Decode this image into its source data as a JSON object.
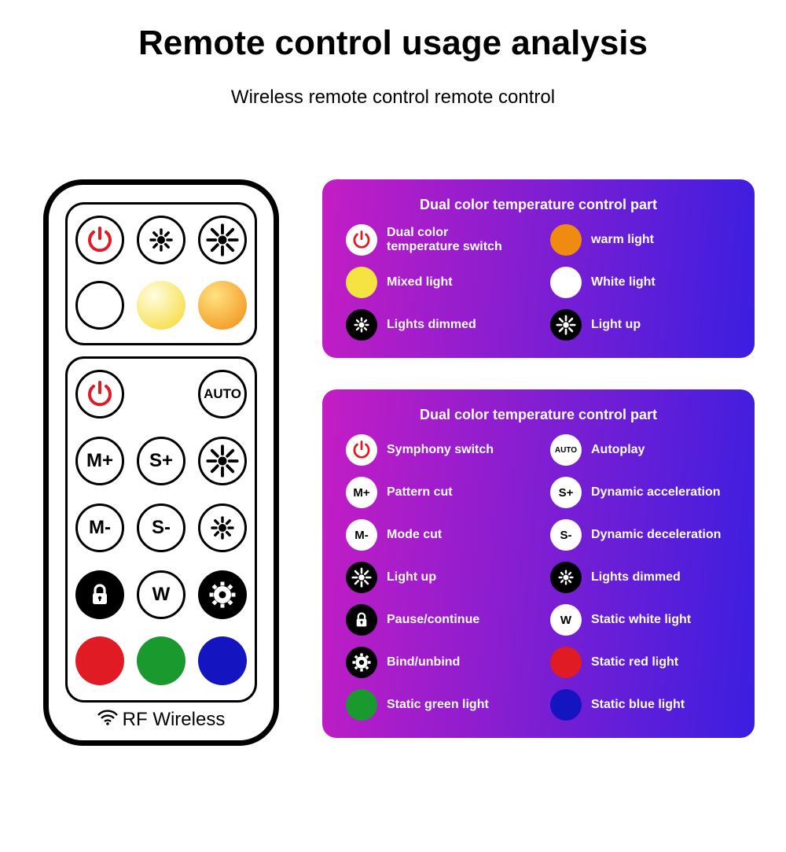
{
  "title": "Remote control usage analysis",
  "subtitle": "Wireless remote control remote control",
  "rf_label": "RF Wireless",
  "colors": {
    "bg": "#ffffff",
    "text": "#000000",
    "border": "#000000",
    "red": "#e01b24",
    "orange": "#f08b12",
    "yellow": "#f5e342",
    "yellow_grad_top": "#fffde0",
    "yellow_grad_bot": "#f5d72a",
    "orange_grad_top": "#ffe280",
    "orange_grad_bot": "#f08b12",
    "green": "#1a9a2e",
    "blue": "#1414c0",
    "dark_red": "#d01010",
    "panel_grad_left": "#c41dc4",
    "panel_grad_right": "#3b1ee0",
    "white": "#ffffff",
    "black": "#000000"
  },
  "remote": {
    "top": [
      {
        "type": "power",
        "color": "#e01b24"
      },
      {
        "type": "bright_small"
      },
      {
        "type": "bright_large"
      },
      {
        "type": "solid",
        "fill": "#ffffff",
        "border": true
      },
      {
        "type": "solid_grad",
        "from": "#fffde0",
        "to": "#f5d72a"
      },
      {
        "type": "solid_grad",
        "from": "#ffe280",
        "to": "#f08b12"
      }
    ],
    "bot": [
      {
        "type": "power",
        "color": "#e01b24"
      },
      {
        "type": "empty"
      },
      {
        "type": "text",
        "label": "AUTO",
        "fs": 17
      },
      {
        "type": "text",
        "label": "M+"
      },
      {
        "type": "text",
        "label": "S+"
      },
      {
        "type": "bright_large"
      },
      {
        "type": "text",
        "label": "M-"
      },
      {
        "type": "text",
        "label": "S-"
      },
      {
        "type": "bright_small"
      },
      {
        "type": "lock_black"
      },
      {
        "type": "text",
        "label": "W"
      },
      {
        "type": "gear_black"
      },
      {
        "type": "solid",
        "fill": "#e01b24"
      },
      {
        "type": "solid",
        "fill": "#1a9a2e"
      },
      {
        "type": "solid",
        "fill": "#1414c0"
      }
    ]
  },
  "panel1": {
    "title": "Dual color temperature control part",
    "items": [
      {
        "icon": "power_ring",
        "label": "Dual color\ntemperature switch"
      },
      {
        "icon": "solid",
        "fill": "#f08b12",
        "label": "warm light"
      },
      {
        "icon": "solid",
        "fill": "#f5e342",
        "label": "Mixed light"
      },
      {
        "icon": "solid",
        "fill": "#ffffff",
        "label": "White light"
      },
      {
        "icon": "bright_inv_small",
        "label": "Lights dimmed"
      },
      {
        "icon": "bright_inv_large",
        "label": "Light up"
      }
    ]
  },
  "panel2": {
    "title": "Dual color temperature control part",
    "items": [
      {
        "icon": "power_ring",
        "label": "Symphony switch"
      },
      {
        "icon": "text_ring",
        "text": "AUTO",
        "fs": 10,
        "label": "Autoplay"
      },
      {
        "icon": "text_ring",
        "text": "M+",
        "label": "Pattern cut"
      },
      {
        "icon": "text_ring",
        "text": "S+",
        "label": "Dynamic acceleration"
      },
      {
        "icon": "text_ring",
        "text": "M-",
        "label": "Mode cut"
      },
      {
        "icon": "text_ring",
        "text": "S-",
        "label": "Dynamic deceleration"
      },
      {
        "icon": "bright_inv_large",
        "label": "Light up"
      },
      {
        "icon": "bright_inv_small",
        "label": "Lights dimmed"
      },
      {
        "icon": "lock_inv",
        "label": "Pause/continue"
      },
      {
        "icon": "text_ring",
        "text": "W",
        "label": "Static white light"
      },
      {
        "icon": "gear_inv",
        "label": "Bind/unbind"
      },
      {
        "icon": "solid",
        "fill": "#e01b24",
        "label": "Static red light"
      },
      {
        "icon": "solid",
        "fill": "#1a9a2e",
        "label": "Static green light"
      },
      {
        "icon": "solid",
        "fill": "#1414c0",
        "label": "Static blue light"
      }
    ]
  }
}
